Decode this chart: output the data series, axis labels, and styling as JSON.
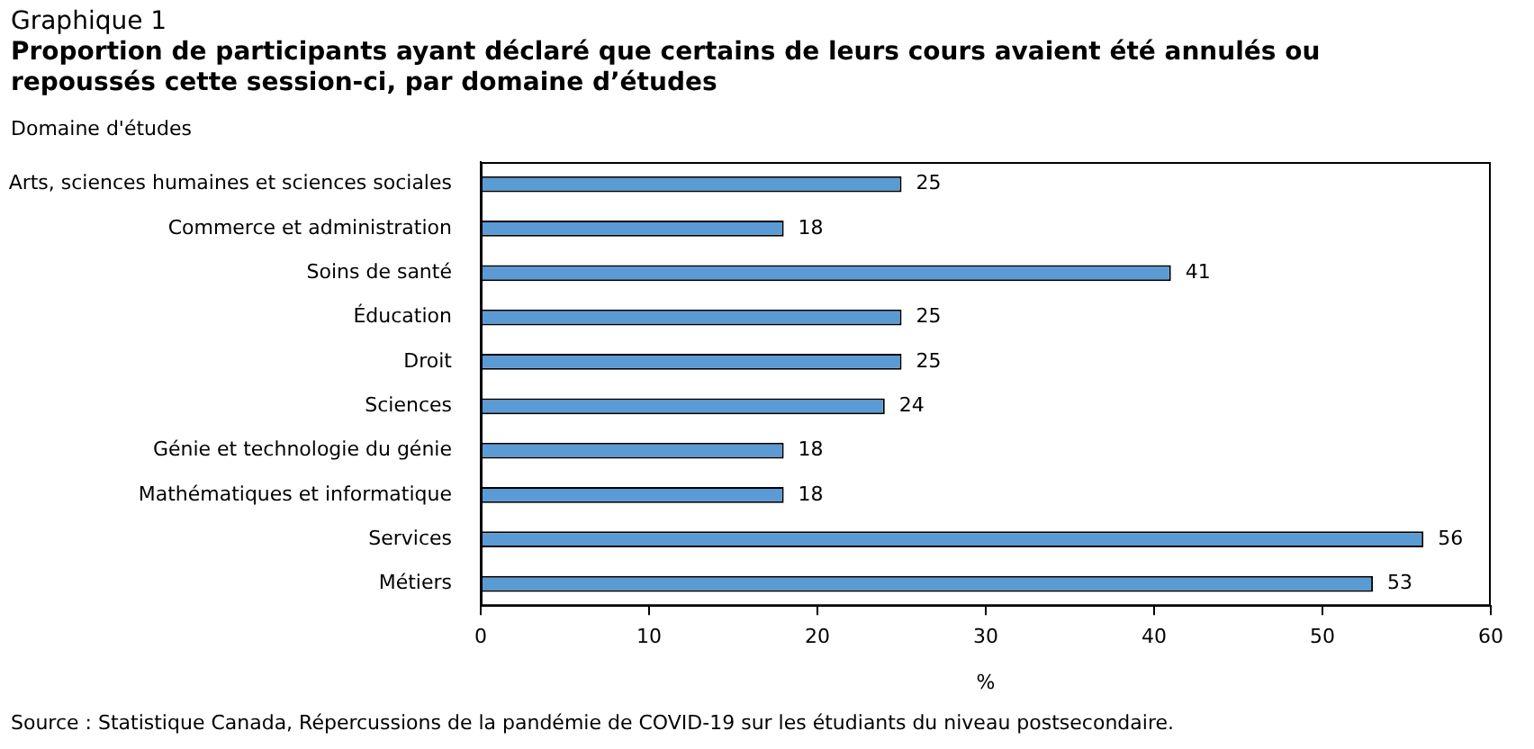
{
  "chart_data": {
    "type": "bar",
    "orientation": "horizontal",
    "title": "Graphique 1",
    "subtitle": "Proportion de participants ayant déclaré que certains de leurs cours avaient été annulés ou repoussés cette session-ci, par domaine d’études",
    "ylabel": "Domaine d'études",
    "xlabel": "%",
    "categories": [
      "Arts, sciences humaines et sciences sociales",
      "Commerce et administration",
      "Soins de santé",
      "Éducation",
      "Droit",
      "Sciences",
      "Génie et technologie du génie",
      "Mathématiques et informatique",
      "Services",
      "Métiers"
    ],
    "values": [
      25,
      18,
      41,
      25,
      25,
      24,
      18,
      18,
      56,
      53
    ],
    "color": "#5b9bd5",
    "xlim": [
      0,
      60
    ],
    "xticks": [
      0,
      10,
      20,
      30,
      40,
      50,
      60
    ],
    "grid": false,
    "legend": false,
    "data_labels": true,
    "annotations": [
      "Source : Statistique Canada, Répercussions de la pandémie de COVID-19 sur les étudiants du niveau postsecondaire."
    ]
  }
}
